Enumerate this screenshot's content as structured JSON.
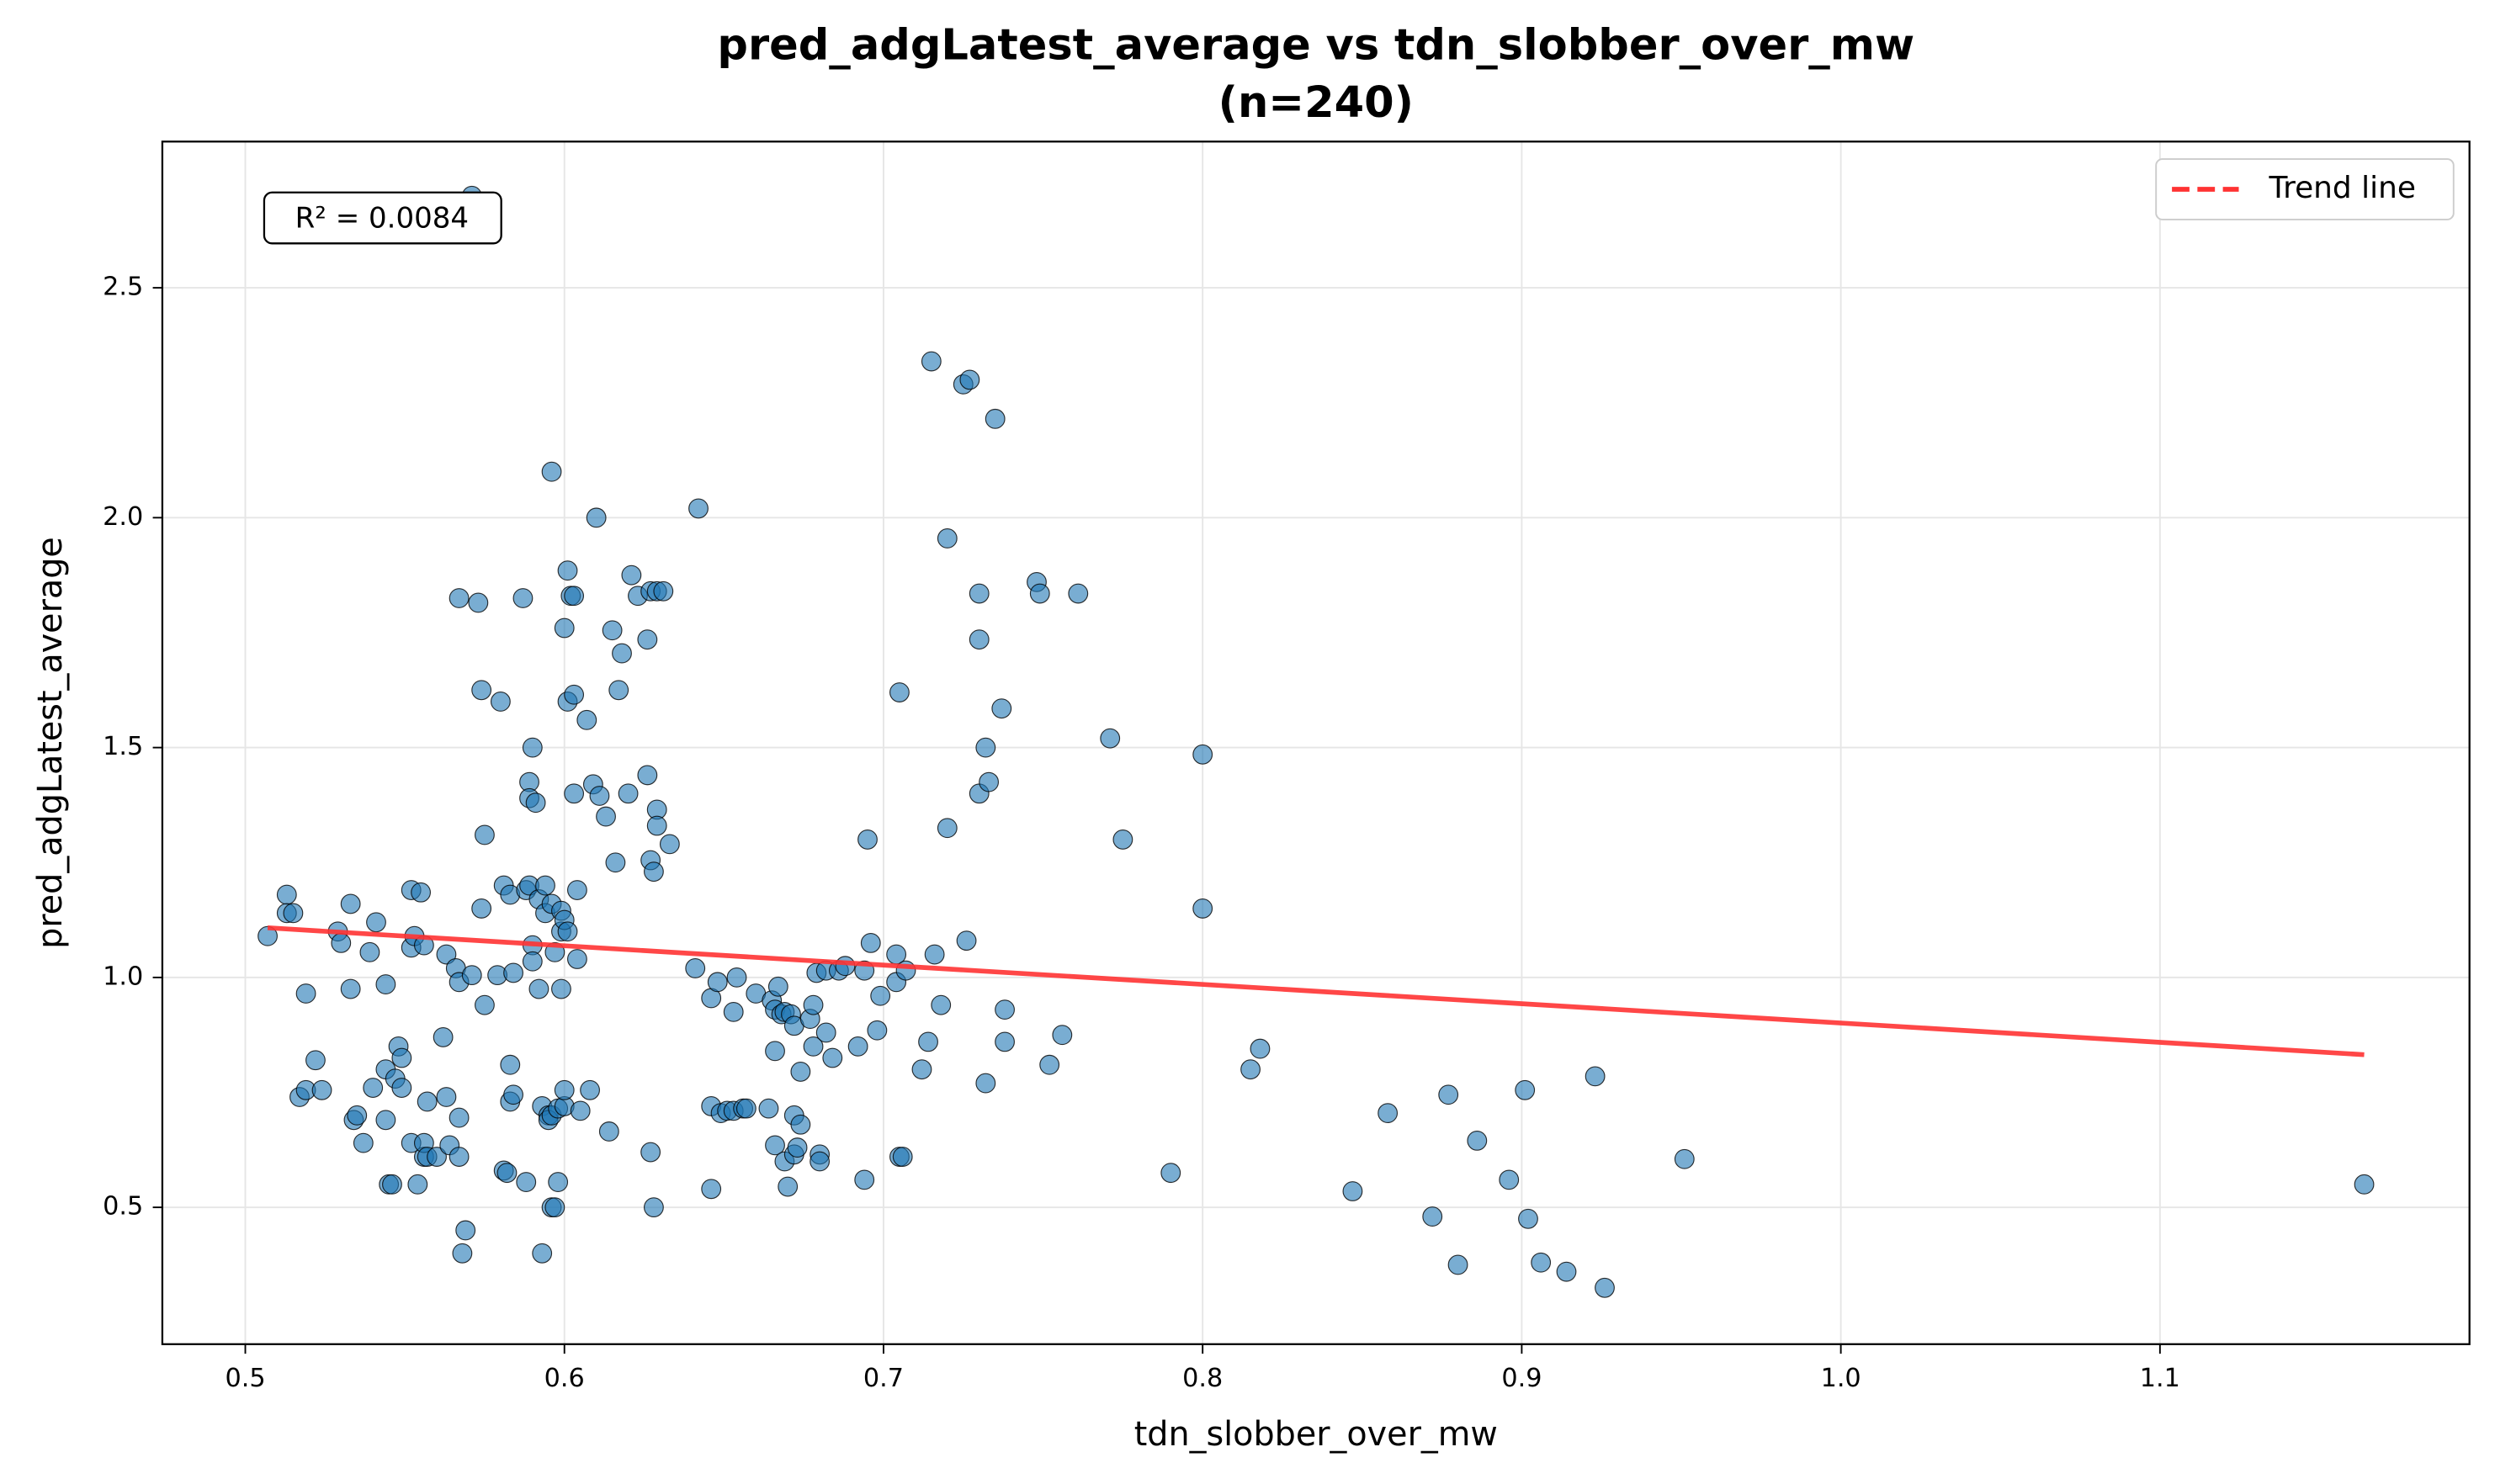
{
  "chart_data": {
    "type": "scatter",
    "title": "pred_adgLatest_average vs tdn_slobber_over_mw",
    "subtitle": "(n=240)",
    "x_label": "tdn_slobber_over_mw",
    "y_label": "pred_adgLatest_average",
    "annotation": "R² = 0.0084",
    "color": "#1f77b4",
    "grid": true,
    "legend": "upper right",
    "xlim": [
      0.474,
      1.197
    ],
    "ylim": [
      0.2024,
      2.818
    ],
    "xticks": [
      0.5,
      0.6,
      0.7,
      0.8,
      0.9,
      {
        "value": 1,
        "label": "1.0"
      },
      1.1
    ],
    "yticks": [
      0.5,
      {
        "value": 1,
        "label": "1.0"
      },
      1.5,
      {
        "value": 2,
        "label": "2.0"
      },
      2.5
    ],
    "x": [
      0.507,
      0.513,
      0.513,
      0.515,
      0.517,
      0.519,
      0.519,
      0.522,
      0.524,
      0.529,
      0.53,
      0.533,
      0.533,
      0.534,
      0.535,
      0.537,
      0.539,
      0.54,
      0.541,
      0.544,
      0.544,
      0.544,
      0.545,
      0.546,
      0.547,
      0.548,
      0.549,
      0.549,
      0.552,
      0.552,
      0.552,
      0.553,
      0.554,
      0.555,
      0.556,
      0.556,
      0.556,
      0.557,
      0.557,
      0.56,
      0.562,
      0.563,
      0.563,
      0.564,
      0.566,
      0.567,
      0.567,
      0.567,
      0.567,
      0.568,
      0.569,
      0.571,
      0.571,
      0.573,
      0.574,
      0.574,
      0.575,
      0.575,
      0.579,
      0.58,
      0.581,
      0.581,
      0.582,
      0.583,
      0.583,
      0.583,
      0.584,
      0.584,
      0.587,
      0.588,
      0.588,
      0.589,
      0.589,
      0.589,
      0.59,
      0.59,
      0.59,
      0.591,
      0.592,
      0.592,
      0.593,
      0.593,
      0.594,
      0.594,
      0.595,
      0.595,
      0.596,
      0.596,
      0.596,
      0.596,
      0.597,
      0.597,
      0.598,
      0.598,
      0.599,
      0.599,
      0.599,
      0.6,
      0.6,
      0.6,
      0.6,
      0.601,
      0.601,
      0.601,
      0.602,
      0.603,
      0.603,
      0.603,
      0.604,
      0.604,
      0.605,
      0.607,
      0.608,
      0.609,
      0.61,
      0.611,
      0.613,
      0.614,
      0.615,
      0.616,
      0.617,
      0.618,
      0.62,
      0.621,
      0.623,
      0.626,
      0.626,
      0.627,
      0.627,
      0.627,
      0.628,
      0.628,
      0.629,
      0.629,
      0.629,
      0.631,
      0.633,
      0.641,
      0.642,
      0.646,
      0.646,
      0.646,
      0.648,
      0.649,
      0.651,
      0.653,
      0.653,
      0.654,
      0.656,
      0.657,
      0.66,
      0.664,
      0.665,
      0.666,
      0.666,
      0.666,
      0.667,
      0.668,
      0.669,
      0.669,
      0.67,
      0.671,
      0.672,
      0.672,
      0.672,
      0.673,
      0.674,
      0.674,
      0.677,
      0.678,
      0.678,
      0.679,
      0.68,
      0.68,
      0.682,
      0.682,
      0.684,
      0.686,
      0.688,
      0.692,
      0.694,
      0.694,
      0.695,
      0.696,
      0.698,
      0.699,
      0.704,
      0.704,
      0.705,
      0.705,
      0.706,
      0.707,
      0.712,
      0.714,
      0.715,
      0.716,
      0.718,
      0.72,
      0.72,
      0.725,
      0.726,
      0.727,
      0.73,
      0.73,
      0.73,
      0.732,
      0.732,
      0.733,
      0.735,
      0.737,
      0.738,
      0.738,
      0.748,
      0.749,
      0.752,
      0.756,
      0.761,
      0.771,
      0.775,
      0.79,
      0.8,
      0.8,
      0.815,
      0.818,
      0.847,
      0.858,
      0.872,
      0.877,
      0.88,
      0.886,
      0.896,
      0.901,
      0.902,
      0.906,
      0.914,
      0.923,
      0.926,
      0.951,
      1.164
    ],
    "values": [
      1.09,
      1.18,
      1.14,
      1.14,
      0.74,
      0.755,
      0.965,
      0.82,
      0.755,
      1.1,
      1.075,
      1.16,
      0.975,
      0.69,
      0.7,
      0.64,
      1.055,
      0.76,
      1.12,
      0.69,
      0.985,
      0.8,
      0.55,
      0.55,
      0.78,
      0.85,
      0.825,
      0.76,
      1.19,
      1.065,
      0.64,
      1.09,
      0.55,
      1.185,
      1.07,
      0.61,
      0.64,
      0.73,
      0.61,
      0.61,
      0.87,
      0.74,
      1.05,
      0.635,
      1.02,
      0.99,
      1.825,
      0.695,
      0.61,
      0.4,
      0.45,
      1.005,
      2.7,
      1.815,
      1.15,
      1.625,
      1.31,
      0.94,
      1.005,
      1.6,
      1.2,
      0.58,
      0.575,
      1.18,
      0.81,
      0.73,
      1.01,
      0.745,
      1.825,
      1.19,
      0.555,
      1.425,
      1.39,
      1.2,
      1.5,
      1.07,
      1.035,
      1.38,
      1.17,
      0.975,
      0.72,
      0.4,
      1.14,
      1.2,
      0.7,
      0.69,
      2.1,
      1.16,
      0.5,
      0.7,
      1.055,
      0.5,
      0.555,
      0.715,
      0.975,
      1.145,
      1.1,
      1.125,
      1.76,
      0.72,
      0.755,
      1.1,
      1.6,
      1.885,
      1.83,
      1.83,
      1.615,
      1.4,
      1.19,
      1.04,
      0.71,
      1.56,
      0.755,
      1.42,
      2.0,
      1.395,
      1.35,
      0.665,
      1.755,
      1.25,
      1.625,
      1.705,
      1.4,
      1.875,
      1.83,
      1.44,
      1.735,
      1.255,
      1.84,
      0.62,
      0.5,
      1.23,
      1.365,
      1.33,
      1.84,
      1.84,
      1.29,
      1.02,
      2.02,
      0.955,
      0.54,
      0.72,
      0.99,
      0.705,
      0.71,
      0.925,
      0.71,
      1.0,
      0.715,
      0.715,
      0.965,
      0.715,
      0.95,
      0.635,
      0.84,
      0.93,
      0.98,
      0.92,
      0.925,
      0.6,
      0.545,
      0.92,
      0.895,
      0.7,
      0.615,
      0.63,
      0.795,
      0.68,
      0.91,
      0.94,
      0.85,
      1.01,
      0.615,
      0.6,
      0.88,
      1.015,
      0.825,
      1.015,
      1.025,
      0.85,
      1.015,
      0.56,
      1.3,
      1.075,
      0.885,
      0.96,
      1.05,
      0.99,
      1.62,
      0.61,
      0.61,
      1.015,
      0.8,
      0.86,
      2.34,
      1.05,
      0.94,
      1.325,
      1.955,
      2.29,
      1.08,
      2.3,
      1.4,
      1.835,
      1.735,
      0.77,
      1.5,
      1.425,
      2.215,
      1.585,
      0.86,
      0.93,
      1.86,
      1.835,
      0.81,
      0.875,
      1.835,
      1.52,
      1.3,
      0.575,
      1.485,
      1.15,
      0.8,
      0.845,
      0.535,
      0.705,
      0.48,
      0.745,
      0.375,
      0.645,
      0.56,
      0.755,
      0.475,
      0.38,
      0.36,
      0.785,
      0.325,
      0.605,
      0.55
    ],
    "trend": {
      "name": "Trend line",
      "color": "#ff3333",
      "x": [
        0.507,
        1.164
      ],
      "values": [
        1.108,
        0.832
      ]
    }
  }
}
